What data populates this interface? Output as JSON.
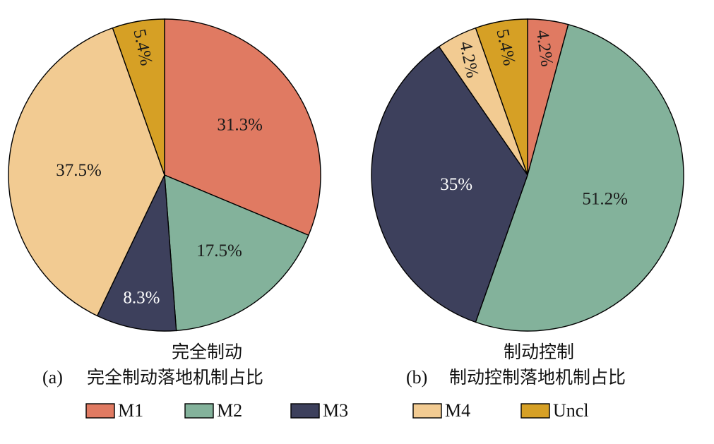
{
  "chart_data": [
    {
      "type": "pie",
      "title": "完全制动",
      "caption_letter": "(a)",
      "caption": "完全制动落地机制占比",
      "slices": [
        {
          "name": "M1",
          "value": 31.3,
          "label": "31.3%",
          "color": "#e07a62",
          "label_color": "#1a1a1a"
        },
        {
          "name": "M2",
          "value": 17.5,
          "label": "17.5%",
          "color": "#83b29b",
          "label_color": "#1a1a1a"
        },
        {
          "name": "M3",
          "value": 8.3,
          "label": "8.3%",
          "color": "#3d405c",
          "label_color": "#ffffff"
        },
        {
          "name": "M4",
          "value": 37.5,
          "label": "37.5%",
          "color": "#f2cb92",
          "label_color": "#1a1a1a"
        },
        {
          "name": "Uncl",
          "value": 5.4,
          "label": "5.4%",
          "color": "#d6a025",
          "label_color": "#1a1a1a"
        }
      ]
    },
    {
      "type": "pie",
      "title": "制动控制",
      "caption_letter": "(b)",
      "caption": "制动控制落地机制占比",
      "slices": [
        {
          "name": "M1",
          "value": 4.2,
          "label": "4.2%",
          "color": "#e07a62",
          "label_color": "#1a1a1a"
        },
        {
          "name": "M2",
          "value": 51.2,
          "label": "51.2%",
          "color": "#83b29b",
          "label_color": "#1a1a1a"
        },
        {
          "name": "M3",
          "value": 35,
          "label": "35%",
          "color": "#3d405c",
          "label_color": "#ffffff"
        },
        {
          "name": "M4",
          "value": 4.2,
          "label": "4.2%",
          "color": "#f2cb92",
          "label_color": "#1a1a1a"
        },
        {
          "name": "Uncl",
          "value": 5.4,
          "label": "5.4%",
          "color": "#d6a025",
          "label_color": "#1a1a1a"
        }
      ]
    }
  ],
  "legend": [
    {
      "name": "M1",
      "color": "#e07a62"
    },
    {
      "name": "M2",
      "color": "#83b29b"
    },
    {
      "name": "M3",
      "color": "#3d405c"
    },
    {
      "name": "M4",
      "color": "#f2cb92"
    },
    {
      "name": "Uncl",
      "color": "#d6a025"
    }
  ]
}
